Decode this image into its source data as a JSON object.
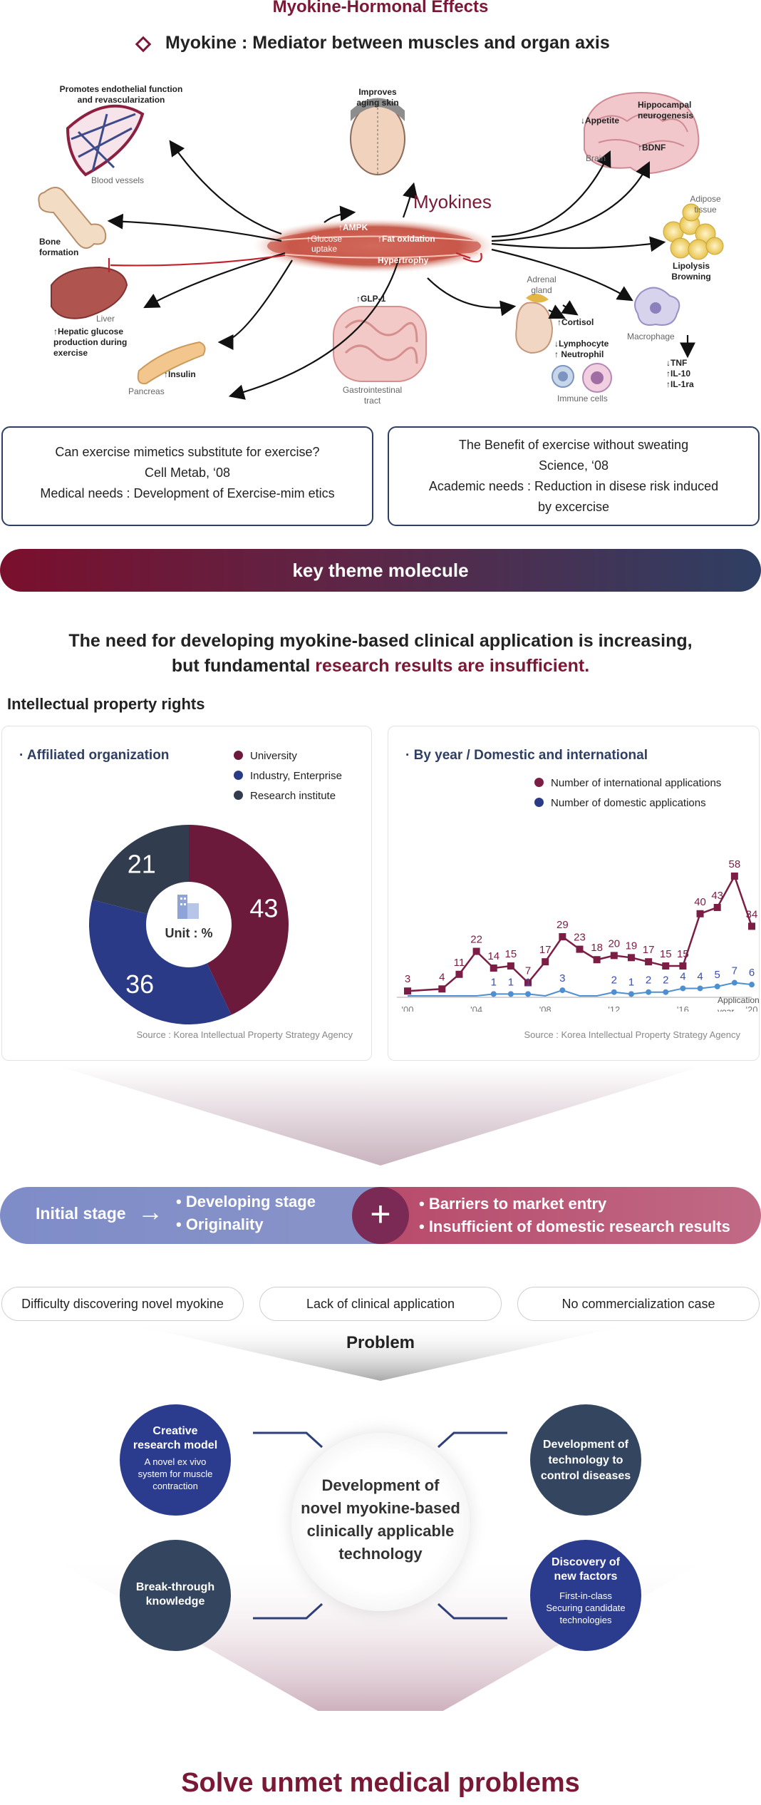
{
  "header": {
    "title": "Myokine-Hormonal Effects",
    "subtitle": "Myokine : Mediator between muscles and organ axis"
  },
  "diagram": {
    "myokines_label": "Myokines",
    "muscle_labels": [
      "↑AMPK",
      "↑Glucose uptake",
      "↑Fat oxidation",
      "Hypertrophy"
    ],
    "organs": {
      "blood_vessels": {
        "note": "Promotes endothelial function and revascularization",
        "name": "Blood vessels"
      },
      "skin": {
        "note": "Improves aging skin"
      },
      "brain": {
        "name": "Brain",
        "appetite": "↓Appetite",
        "neuro": "Hippocampal neurogenesis",
        "bdnf": "↑BDNF"
      },
      "bone": {
        "note": "Bone formation"
      },
      "adipose": {
        "name": "Adipose tissue",
        "note": "Lipolysis Browning"
      },
      "liver": {
        "name": "Liver",
        "note": "↑Hepatic glucose production during exercise"
      },
      "gi": {
        "note": "↑GLP-1",
        "name": "Gastrointestinal tract"
      },
      "adrenal": {
        "name": "Adrenal gland",
        "cortisol": "↑Cortisol",
        "lymph": "↓Lymphocyte",
        "neut": "↑ Neutrophil",
        "immune": "Immune cells"
      },
      "macrophage": {
        "name": "Macrophage",
        "tnf": "↓TNF",
        "il10": "↑IL-10",
        "il1ra": "↑IL-1ra"
      },
      "pancreas": {
        "name": "Pancreas",
        "note": "↑Insulin"
      }
    }
  },
  "refs": [
    {
      "line1": "Can exercise mimetics substitute for exercise?",
      "line2": "Cell Metab, ‘08",
      "line3": "Medical needs : Development of Exercise-mim etics",
      "line4": ""
    },
    {
      "line1": "The Benefit of exercise without sweating",
      "line2": "Science, ‘08",
      "line3": "Academic needs : Reduction in disese risk induced",
      "line4": "by excercise"
    }
  ],
  "banner": "key theme molecule",
  "need": {
    "line1": "The need for developing myokine-based clinical application is increasing,",
    "line2a": "but fundamental ",
    "line2b": "research results are insufficient."
  },
  "ip_title": "Intellectual property rights",
  "donut": {
    "title": "Affiliated organization",
    "center_label": "Unit : %",
    "source": "Source : Korea Intellectual Property Strategy Agency",
    "legend": [
      "University",
      "Industry, Enterprise",
      "Research institute"
    ],
    "colors": [
      "#6b1a3c",
      "#2a3a86",
      "#323c4f"
    ]
  },
  "line_panel": {
    "title": "By year / Domestic and international",
    "legend": [
      "Number of international applications",
      "Number of domestic applications"
    ],
    "colors": [
      "#7b1d44",
      "#4d8fd1"
    ],
    "source": "Source : Korea Intellectual Property Strategy Agency"
  },
  "chart_data": [
    {
      "type": "pie",
      "title": "Affiliated organization",
      "unit": "%",
      "categories": [
        "University",
        "Industry, Enterprise",
        "Research institute"
      ],
      "values": [
        43,
        36,
        21
      ]
    },
    {
      "type": "line",
      "title": "By year / Domestic and international",
      "xlabel": "Application year",
      "x": [
        2000,
        2001,
        2002,
        2003,
        2004,
        2005,
        2006,
        2007,
        2008,
        2009,
        2010,
        2011,
        2012,
        2013,
        2014,
        2015,
        2016,
        2017,
        2018,
        2019,
        2020
      ],
      "xticks": [
        "'00",
        "'04",
        "'08",
        "'12",
        "'16",
        "'20"
      ],
      "series": [
        {
          "name": "Number of international applications",
          "values": [
            3,
            null,
            4,
            11,
            22,
            14,
            15,
            7,
            17,
            29,
            23,
            18,
            20,
            19,
            17,
            15,
            15,
            40,
            43,
            58,
            34
          ]
        },
        {
          "name": "Number of domestic applications",
          "values": [
            null,
            null,
            null,
            null,
            null,
            1,
            1,
            1,
            null,
            3,
            null,
            null,
            2,
            1,
            2,
            2,
            4,
            4,
            5,
            7,
            6
          ]
        }
      ]
    }
  ],
  "stage": {
    "initial": "Initial stage",
    "arrow": "→",
    "left1": "• Developing stage",
    "left2": "• Originality",
    "plus": "+",
    "right1": "• Barriers to market entry",
    "right2": "• Insufficient of domestic research results"
  },
  "pills": [
    "Difficulty discovering novel myokine",
    "Lack of clinical application",
    "No commercialization case"
  ],
  "problem": "Problem",
  "center_circle": "Development of novel myokine-based clinically applicable technology",
  "circles": {
    "creative": {
      "title": "Creative research model",
      "desc": "A novel ex vivo system for muscle contraction"
    },
    "breakthrough": {
      "title": "Break-through knowledge"
    },
    "devtech": {
      "title": "Development of technology to control diseases"
    },
    "discovery": {
      "title": "Discovery of new factors",
      "desc": "First-in-class Securing candidate technologies"
    }
  },
  "footer": "Solve unmet medical problems"
}
